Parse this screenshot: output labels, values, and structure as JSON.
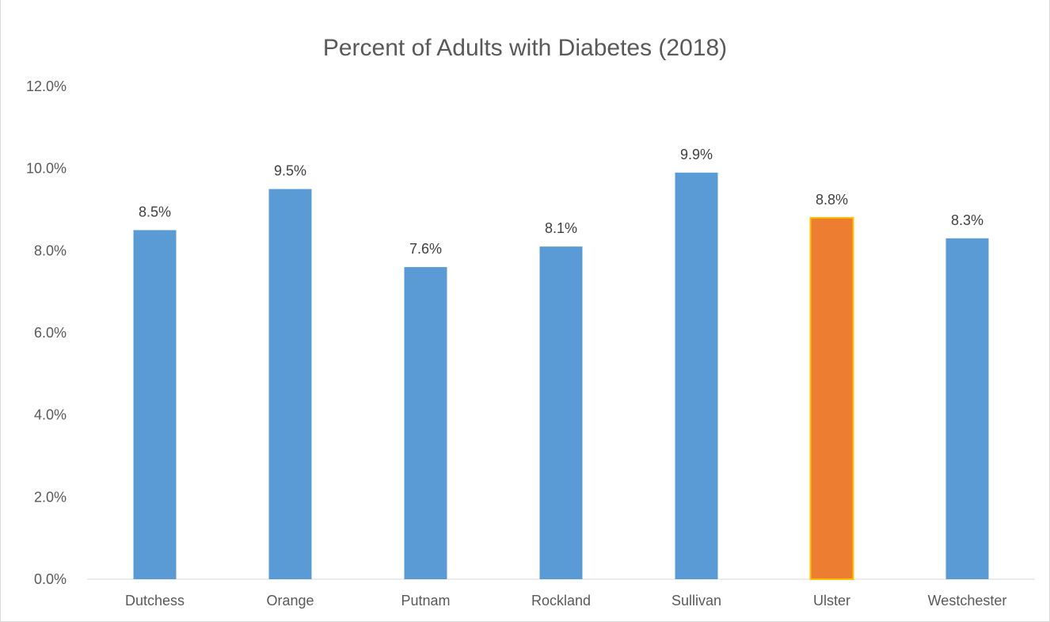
{
  "chart_data": {
    "type": "bar",
    "title": "Percent of Adults with Diabetes (2018)",
    "xlabel": "",
    "ylabel": "",
    "categories": [
      "Dutchess",
      "Orange",
      "Putnam",
      "Rockland",
      "Sullivan",
      "Ulster",
      "Westchester"
    ],
    "values": [
      8.5,
      9.5,
      7.6,
      8.1,
      9.9,
      8.8,
      8.3
    ],
    "data_labels": [
      "8.5%",
      "9.5%",
      "7.6%",
      "8.1%",
      "9.9%",
      "8.8%",
      "8.3%"
    ],
    "ylim": [
      0,
      12
    ],
    "yticks": [
      0,
      2,
      4,
      6,
      8,
      10,
      12
    ],
    "ytick_labels": [
      "0.0%",
      "2.0%",
      "4.0%",
      "6.0%",
      "8.0%",
      "10.0%",
      "12.0%"
    ],
    "grid": false,
    "legend": "none",
    "colors": {
      "default_bar": "#5b9bd5",
      "highlight_bar": "#ed7d31",
      "highlight_border": "#ffc000",
      "highlight_category": "Ulster",
      "axis": "#d9d9d9"
    }
  }
}
